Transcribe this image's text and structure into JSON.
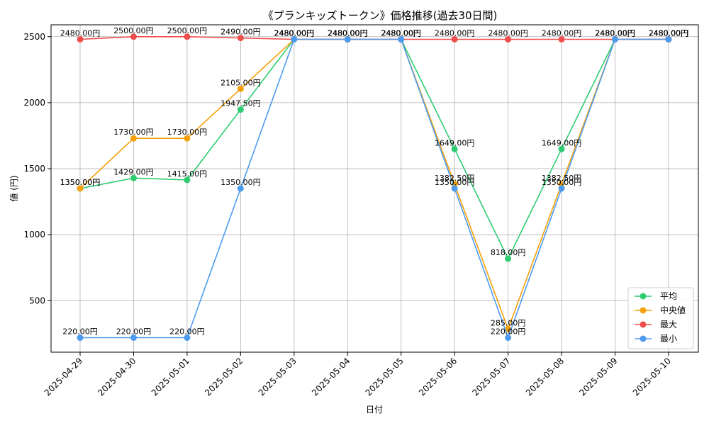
{
  "chart_data": {
    "type": "line",
    "title": "《プランキッズトークン》価格推移(過去30日間)",
    "xlabel": "日付",
    "ylabel": "値 (円)",
    "categories": [
      "2025-04-29",
      "2025-04-30",
      "2025-05-01",
      "2025-05-02",
      "2025-05-03",
      "2025-05-04",
      "2025-05-05",
      "2025-05-06",
      "2025-05-07",
      "2025-05-08",
      "2025-05-09",
      "2025-05-10"
    ],
    "ylim": [
      110,
      2590
    ],
    "yticks": [
      500,
      1000,
      1500,
      2000,
      2500
    ],
    "grid": true,
    "legend_position": "bottom-right",
    "series": [
      {
        "name": "平均",
        "color": "#2ecc71",
        "values": [
          1350.0,
          1429.0,
          1415.0,
          1947.5,
          2480.0,
          2480.0,
          2480.0,
          1649.0,
          818.0,
          1649.0,
          2480.0,
          2480.0
        ],
        "labels": [
          "1350.00円",
          "1429.00円",
          "1415.00円",
          "1947.50円",
          "2480.00円",
          "2480.00円",
          "2480.00円",
          "1649.00円",
          "818.00円",
          "1649.00円",
          "2480.00円",
          "2480.00円"
        ]
      },
      {
        "name": "中央値",
        "color": "#f5a00a",
        "values": [
          1350.0,
          1730.0,
          1730.0,
          2105.0,
          2480.0,
          2480.0,
          2480.0,
          1382.5,
          285.0,
          1382.5,
          2480.0,
          2480.0
        ],
        "labels": [
          "1350.00円",
          "1730.00円",
          "1730.00円",
          "2105.00円",
          "2480.00円",
          "2480.00円",
          "2480.00円",
          "1382.50円",
          "285.00円",
          "1382.50円",
          "2480.00円",
          "2480.00円"
        ]
      },
      {
        "name": "最大",
        "color": "#f04d4d",
        "values": [
          2480.0,
          2500.0,
          2500.0,
          2490.0,
          2480.0,
          2480.0,
          2480.0,
          2480.0,
          2480.0,
          2480.0,
          2480.0,
          2480.0
        ],
        "labels": [
          "2480.00円",
          "2500.00円",
          "2500.00円",
          "2490.00円",
          "2480.00円",
          "2480.00円",
          "2480.00円",
          "2480.00円",
          "2480.00円",
          "2480.00円",
          "2480.00円",
          "2480.00円"
        ]
      },
      {
        "name": "最小",
        "color": "#4d9bf0",
        "values": [
          220.0,
          220.0,
          220.0,
          1350.0,
          2480.0,
          2480.0,
          2480.0,
          1350.0,
          220.0,
          1350.0,
          2480.0,
          2480.0
        ],
        "labels": [
          "220.00円",
          "220.00円",
          "220.00円",
          "1350.00円",
          "2480.00円",
          "2480.00円",
          "2480.00円",
          "1350.00円",
          "220.00円",
          "1350.00円",
          "2480.00円",
          "2480.00円"
        ]
      }
    ]
  }
}
